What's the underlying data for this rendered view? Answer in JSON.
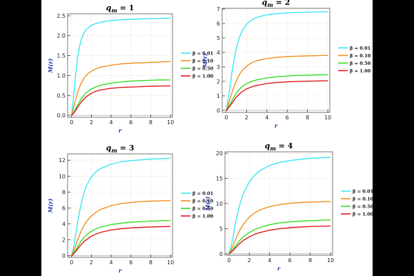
{
  "chart_data": [
    {
      "type": "line",
      "title_prefix": "q",
      "title_sub": "m",
      "title_value": "= 1",
      "ylabel": "M(r)",
      "xlabel": "r",
      "xlim": [
        -0.4,
        10.2
      ],
      "ylim": [
        -0.05,
        2.55
      ],
      "xticks": [
        "0",
        "2",
        "4",
        "6",
        "8",
        "10"
      ],
      "yticks": [
        "0.0",
        "0.5",
        "1.0",
        "1.5",
        "2.0",
        "2.5"
      ],
      "grid": true,
      "legend_position": "right",
      "series": [
        {
          "name": "β = 0.01",
          "color": "#39e6f2",
          "x": [
            0,
            0.2,
            0.4,
            0.6,
            0.8,
            1,
            1.25,
            1.5,
            2,
            2.5,
            3,
            4,
            5,
            6,
            7,
            8,
            9,
            10
          ],
          "y": [
            0,
            0.45,
            0.99,
            1.42,
            1.72,
            1.92,
            2.07,
            2.16,
            2.26,
            2.31,
            2.34,
            2.38,
            2.4,
            2.41,
            2.42,
            2.43,
            2.435,
            2.44
          ]
        },
        {
          "name": "β = 0.10",
          "color": "#f28c1e",
          "x": [
            0,
            0.2,
            0.4,
            0.6,
            0.8,
            1,
            1.25,
            1.5,
            2,
            2.5,
            3,
            4,
            5,
            6,
            7,
            8,
            9,
            10
          ],
          "y": [
            0,
            0.18,
            0.38,
            0.56,
            0.71,
            0.82,
            0.93,
            1.01,
            1.11,
            1.17,
            1.21,
            1.26,
            1.29,
            1.31,
            1.32,
            1.33,
            1.34,
            1.35
          ]
        },
        {
          "name": "β = 0.50",
          "color": "#33dd22",
          "x": [
            0,
            0.2,
            0.4,
            0.6,
            0.8,
            1,
            1.25,
            1.5,
            2,
            2.5,
            3,
            4,
            5,
            6,
            7,
            8,
            9,
            10
          ],
          "y": [
            0,
            0.07,
            0.16,
            0.25,
            0.34,
            0.42,
            0.5,
            0.57,
            0.66,
            0.72,
            0.76,
            0.81,
            0.84,
            0.86,
            0.87,
            0.88,
            0.89,
            0.89
          ]
        },
        {
          "name": "β = 1.00",
          "color": "#e0141e",
          "x": [
            0,
            0.2,
            0.4,
            0.6,
            0.8,
            1,
            1.25,
            1.5,
            2,
            2.5,
            3,
            4,
            5,
            6,
            7,
            8,
            9,
            10
          ],
          "y": [
            0,
            0.05,
            0.12,
            0.2,
            0.27,
            0.34,
            0.41,
            0.47,
            0.55,
            0.61,
            0.64,
            0.68,
            0.7,
            0.71,
            0.72,
            0.73,
            0.735,
            0.74
          ]
        }
      ]
    },
    {
      "type": "line",
      "title_prefix": "q",
      "title_sub": "m",
      "title_value": "= 2",
      "ylabel": "M(r)",
      "xlabel": "r",
      "xlim": [
        -0.4,
        10.2
      ],
      "ylim": [
        -0.15,
        7.05
      ],
      "xticks": [
        "0",
        "2",
        "4",
        "6",
        "8",
        "10"
      ],
      "yticks": [
        "0",
        "1",
        "2",
        "3",
        "4",
        "5",
        "6",
        "7"
      ],
      "grid": true,
      "legend_position": "right",
      "series": [
        {
          "name": "β = 0.01",
          "color": "#39e6f2",
          "x": [
            0,
            0.2,
            0.4,
            0.6,
            0.8,
            1,
            1.25,
            1.5,
            2,
            2.5,
            3,
            4,
            5,
            6,
            7,
            8,
            9,
            10
          ],
          "y": [
            0,
            0.8,
            1.8,
            2.8,
            3.6,
            4.3,
            4.95,
            5.4,
            5.95,
            6.25,
            6.42,
            6.6,
            6.68,
            6.73,
            6.76,
            6.78,
            6.8,
            6.82
          ]
        },
        {
          "name": "β = 0.10",
          "color": "#f28c1e",
          "x": [
            0,
            0.2,
            0.4,
            0.6,
            0.8,
            1,
            1.25,
            1.5,
            2,
            2.5,
            3,
            4,
            5,
            6,
            7,
            8,
            9,
            10
          ],
          "y": [
            0,
            0.4,
            0.85,
            1.3,
            1.7,
            2.05,
            2.4,
            2.7,
            3.05,
            3.28,
            3.42,
            3.58,
            3.66,
            3.71,
            3.74,
            3.76,
            3.78,
            3.8
          ]
        },
        {
          "name": "β = 0.50",
          "color": "#33dd22",
          "x": [
            0,
            0.2,
            0.4,
            0.6,
            0.8,
            1,
            1.25,
            1.5,
            2,
            2.5,
            3,
            4,
            5,
            6,
            7,
            8,
            9,
            10
          ],
          "y": [
            0,
            0.2,
            0.45,
            0.72,
            0.98,
            1.2,
            1.42,
            1.6,
            1.85,
            2.0,
            2.1,
            2.24,
            2.32,
            2.37,
            2.41,
            2.43,
            2.45,
            2.46
          ]
        },
        {
          "name": "β = 1.00",
          "color": "#e0141e",
          "x": [
            0,
            0.2,
            0.4,
            0.6,
            0.8,
            1,
            1.25,
            1.5,
            2,
            2.5,
            3,
            4,
            5,
            6,
            7,
            8,
            9,
            10
          ],
          "y": [
            0,
            0.14,
            0.33,
            0.53,
            0.73,
            0.92,
            1.1,
            1.26,
            1.48,
            1.62,
            1.72,
            1.85,
            1.92,
            1.96,
            1.99,
            2.01,
            2.03,
            2.04
          ]
        }
      ]
    },
    {
      "type": "line",
      "title_prefix": "q",
      "title_sub": "m",
      "title_value": "= 3",
      "ylabel": "M(r)",
      "xlabel": "r",
      "xlim": [
        -0.4,
        10.2
      ],
      "ylim": [
        -0.2,
        12.8
      ],
      "xticks": [
        "0",
        "2",
        "4",
        "6",
        "8",
        "10"
      ],
      "yticks": [
        "0",
        "2",
        "4",
        "6",
        "8",
        "10",
        "12"
      ],
      "grid": true,
      "legend_position": "right",
      "series": [
        {
          "name": "β = 0.01",
          "color": "#39e6f2",
          "x": [
            0,
            0.2,
            0.4,
            0.6,
            0.8,
            1,
            1.25,
            1.5,
            2,
            2.5,
            3,
            4,
            5,
            6,
            7,
            8,
            9,
            10
          ],
          "y": [
            0,
            1.0,
            2.5,
            4.1,
            5.5,
            6.7,
            7.9,
            8.8,
            9.9,
            10.6,
            11.0,
            11.5,
            11.8,
            11.95,
            12.05,
            12.15,
            12.2,
            12.25
          ]
        },
        {
          "name": "β = 0.10",
          "color": "#f28c1e",
          "x": [
            0,
            0.2,
            0.4,
            0.6,
            0.8,
            1,
            1.25,
            1.5,
            2,
            2.5,
            3,
            4,
            5,
            6,
            7,
            8,
            9,
            10
          ],
          "y": [
            0,
            0.55,
            1.25,
            1.95,
            2.6,
            3.2,
            3.8,
            4.3,
            5.0,
            5.5,
            5.85,
            6.3,
            6.55,
            6.7,
            6.8,
            6.86,
            6.9,
            6.93
          ]
        },
        {
          "name": "β = 0.50",
          "color": "#33dd22",
          "x": [
            0,
            0.2,
            0.4,
            0.6,
            0.8,
            1,
            1.25,
            1.5,
            2,
            2.5,
            3,
            4,
            5,
            6,
            7,
            8,
            9,
            10
          ],
          "y": [
            0,
            0.3,
            0.7,
            1.12,
            1.52,
            1.9,
            2.3,
            2.62,
            3.08,
            3.4,
            3.62,
            3.92,
            4.1,
            4.22,
            4.3,
            4.36,
            4.4,
            4.43
          ]
        },
        {
          "name": "β = 1.00",
          "color": "#e0141e",
          "x": [
            0,
            0.2,
            0.4,
            0.6,
            0.8,
            1,
            1.25,
            1.5,
            2,
            2.5,
            3,
            4,
            5,
            6,
            7,
            8,
            9,
            10
          ],
          "y": [
            0,
            0.22,
            0.52,
            0.84,
            1.15,
            1.45,
            1.77,
            2.04,
            2.45,
            2.75,
            2.96,
            3.24,
            3.4,
            3.5,
            3.57,
            3.62,
            3.66,
            3.68
          ]
        }
      ]
    },
    {
      "type": "line",
      "title_prefix": "q",
      "title_sub": "m",
      "title_value": "= 4",
      "ylabel": "M(r)",
      "xlabel": "r",
      "xlim": [
        -0.4,
        10.2
      ],
      "ylim": [
        -0.3,
        20.3
      ],
      "xticks": [
        "0",
        "2",
        "4",
        "6",
        "8",
        "10"
      ],
      "yticks": [
        "0",
        "5",
        "10",
        "15",
        "20"
      ],
      "grid": true,
      "legend_position": "right",
      "series": [
        {
          "name": "β = 0.01",
          "color": "#39e6f2",
          "x": [
            0,
            0.2,
            0.4,
            0.6,
            0.8,
            1,
            1.25,
            1.5,
            2,
            2.5,
            3,
            4,
            5,
            6,
            7,
            8,
            9,
            10
          ],
          "y": [
            0,
            1.4,
            3.4,
            5.6,
            7.6,
            9.3,
            11.0,
            12.4,
            14.3,
            15.6,
            16.5,
            17.6,
            18.2,
            18.55,
            18.8,
            19.0,
            19.1,
            19.2
          ]
        },
        {
          "name": "β = 0.10",
          "color": "#f28c1e",
          "x": [
            0,
            0.2,
            0.4,
            0.6,
            0.8,
            1,
            1.25,
            1.5,
            2,
            2.5,
            3,
            4,
            5,
            6,
            7,
            8,
            9,
            10
          ],
          "y": [
            0,
            0.7,
            1.65,
            2.65,
            3.6,
            4.45,
            5.35,
            6.1,
            7.3,
            8.1,
            8.7,
            9.4,
            9.8,
            10.05,
            10.2,
            10.3,
            10.35,
            10.4
          ]
        },
        {
          "name": "β = 0.50",
          "color": "#33dd22",
          "x": [
            0,
            0.2,
            0.4,
            0.6,
            0.8,
            1,
            1.25,
            1.5,
            2,
            2.5,
            3,
            4,
            5,
            6,
            7,
            8,
            9,
            10
          ],
          "y": [
            0,
            0.38,
            0.9,
            1.45,
            2.0,
            2.5,
            3.05,
            3.52,
            4.25,
            4.8,
            5.2,
            5.8,
            6.15,
            6.35,
            6.5,
            6.6,
            6.68,
            6.75
          ]
        },
        {
          "name": "β = 1.00",
          "color": "#e0141e",
          "x": [
            0,
            0.2,
            0.4,
            0.6,
            0.8,
            1,
            1.25,
            1.5,
            2,
            2.5,
            3,
            4,
            5,
            6,
            7,
            8,
            9,
            10
          ],
          "y": [
            0,
            0.28,
            0.68,
            1.1,
            1.52,
            1.92,
            2.38,
            2.77,
            3.38,
            3.85,
            4.2,
            4.7,
            5.0,
            5.2,
            5.33,
            5.42,
            5.48,
            5.52
          ]
        }
      ]
    }
  ]
}
